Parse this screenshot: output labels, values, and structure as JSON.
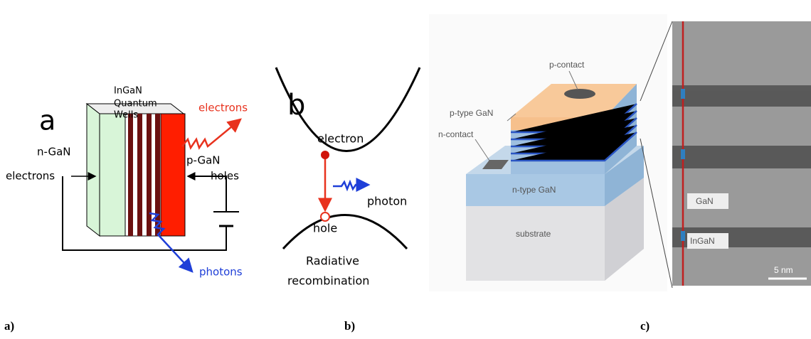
{
  "panel_a": {
    "letter": "a",
    "wells_lines": [
      "InGaN",
      "Quantum",
      "Wells"
    ],
    "emitted_electrons": "electrons",
    "n_side": "n-GaN",
    "p_side": "p-GaN",
    "electrons_in": "electrons",
    "holes_in": "holes",
    "photons": "photons",
    "caption": "a)"
  },
  "panel_b": {
    "letter": "b",
    "electron": "electron",
    "photon": "photon",
    "hole": "hole",
    "process_lines": [
      "Radiative",
      "recombination"
    ],
    "caption": "b)"
  },
  "panel_c": {
    "p_contact": "p-contact",
    "p_type": "p-type GaN",
    "n_contact": "n-contact",
    "n_type": "n-type GaN",
    "substrate": "substrate",
    "gan": "GaN",
    "ingan": "InGaN",
    "scale": "5 nm",
    "caption": "c)"
  }
}
